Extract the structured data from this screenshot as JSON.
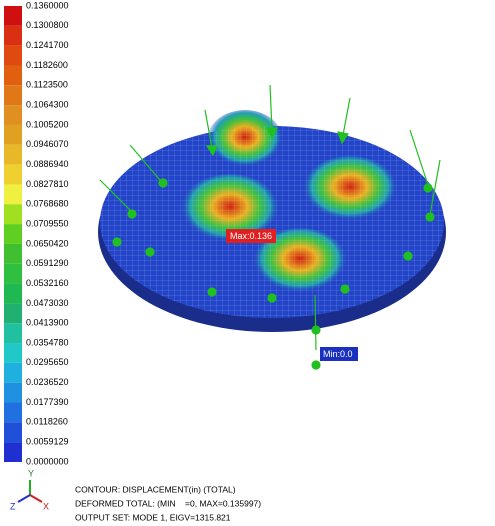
{
  "legend": {
    "labels": [
      "0.1360000",
      "0.1300800",
      "0.1241700",
      "0.1182600",
      "0.1123500",
      "0.1064300",
      "0.1005200",
      "0.0946070",
      "0.0886940",
      "0.0827810",
      "0.0768680",
      "0.0709550",
      "0.0650420",
      "0.0591290",
      "0.0532160",
      "0.0473030",
      "0.0413900",
      "0.0354780",
      "0.0295650",
      "0.0236520",
      "0.0177390",
      "0.0118260",
      "0.0059129",
      "0.0000000"
    ]
  },
  "model": {
    "max_label": "Max:0.136",
    "min_label": "Min:0.0"
  },
  "triad": {
    "x": "X",
    "y": "Y",
    "z": "Z"
  },
  "footer": {
    "lines": [
      "CONTOUR: DISPLACEMENT(in) (TOTAL)",
      "DEFORMED TOTAL: (MIN    =0, MAX=0.135997)",
      "OUTPUT SET: MODE 1, EIGV=1315.821"
    ]
  }
}
